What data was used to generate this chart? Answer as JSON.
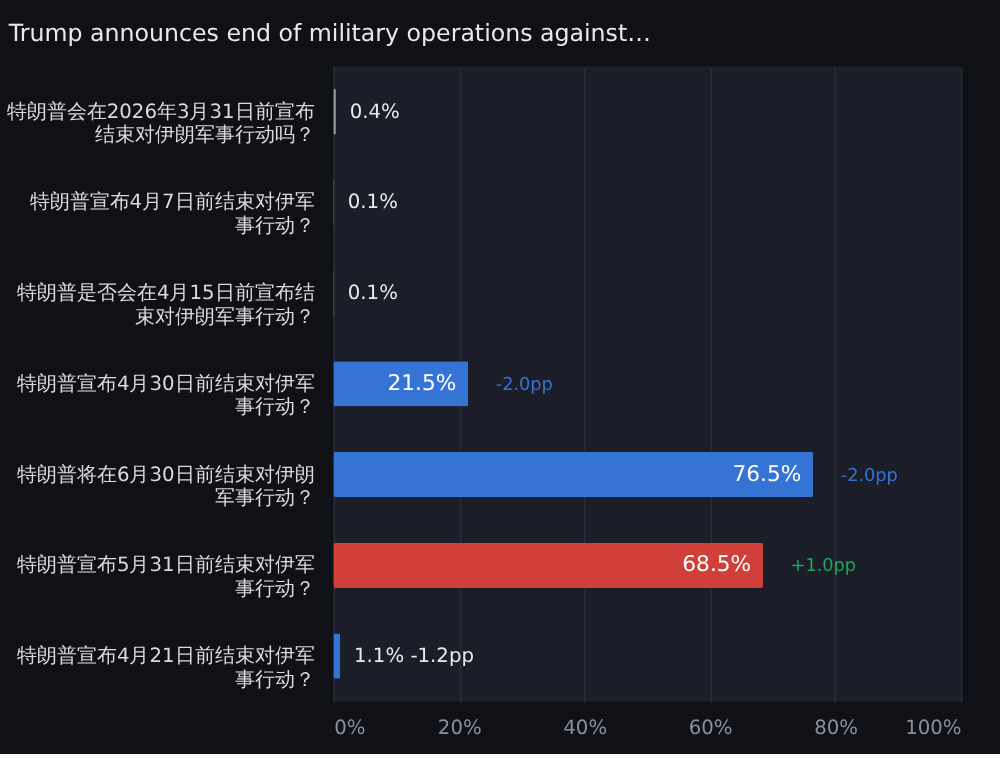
{
  "chart_data": {
    "type": "bar",
    "orientation": "horizontal",
    "title": "Trump announces end of military operations against…",
    "categories": [
      "特朗普会在2026年3月31日前宣布结束对伊朗军事行动吗？",
      "特朗普宣布4月7日前结束对伊军事行动？",
      "特朗普是否会在4月15日前宣布结束对伊朗军事行动？",
      "特朗普宣布4月30日前结束对伊军事行动？",
      "特朗普将在6月30日前结束对伊朗军事行动？",
      "特朗普宣布5月31日前结束对伊军事行动？",
      "特朗普宣布4月21日前结束对伊军事行动？"
    ],
    "values": [
      0.4,
      0.1,
      0.1,
      21.5,
      76.5,
      68.5,
      1.1
    ],
    "colors": [
      "#9aa0ac",
      "#9aa0ac",
      "#9aa0ac",
      "#3574d4",
      "#3574d4",
      "#d04038",
      "#3574d4"
    ],
    "value_labels": [
      "0.4%",
      "0.1%",
      "0.1%",
      "21.5%",
      "76.5%",
      "68.5%",
      "1.1% -1.2pp"
    ],
    "annotations": [
      {
        "text": "-2.0pp",
        "x": 21.5,
        "y": "特朗普宣布4月30日前结束对伊军事行动？"
      },
      {
        "text": "-2.0pp",
        "x": 76.5,
        "y": "特朗普将在6月30日前结束对伊朗军事行动？"
      },
      {
        "text": "+1.0pp",
        "x": 68.5,
        "y": "特朗普宣布5月31日前结束对伊军事行动？"
      }
    ],
    "xlim": [
      0,
      100
    ],
    "xticks": [
      {
        "value": 0,
        "label": "0%"
      },
      {
        "value": 20,
        "label": "20%"
      },
      {
        "value": 40,
        "label": "40%"
      },
      {
        "value": 60,
        "label": "60%"
      },
      {
        "value": 80,
        "label": "80%"
      },
      {
        "value": 100,
        "label": "100%"
      }
    ],
    "grid": "x"
  }
}
